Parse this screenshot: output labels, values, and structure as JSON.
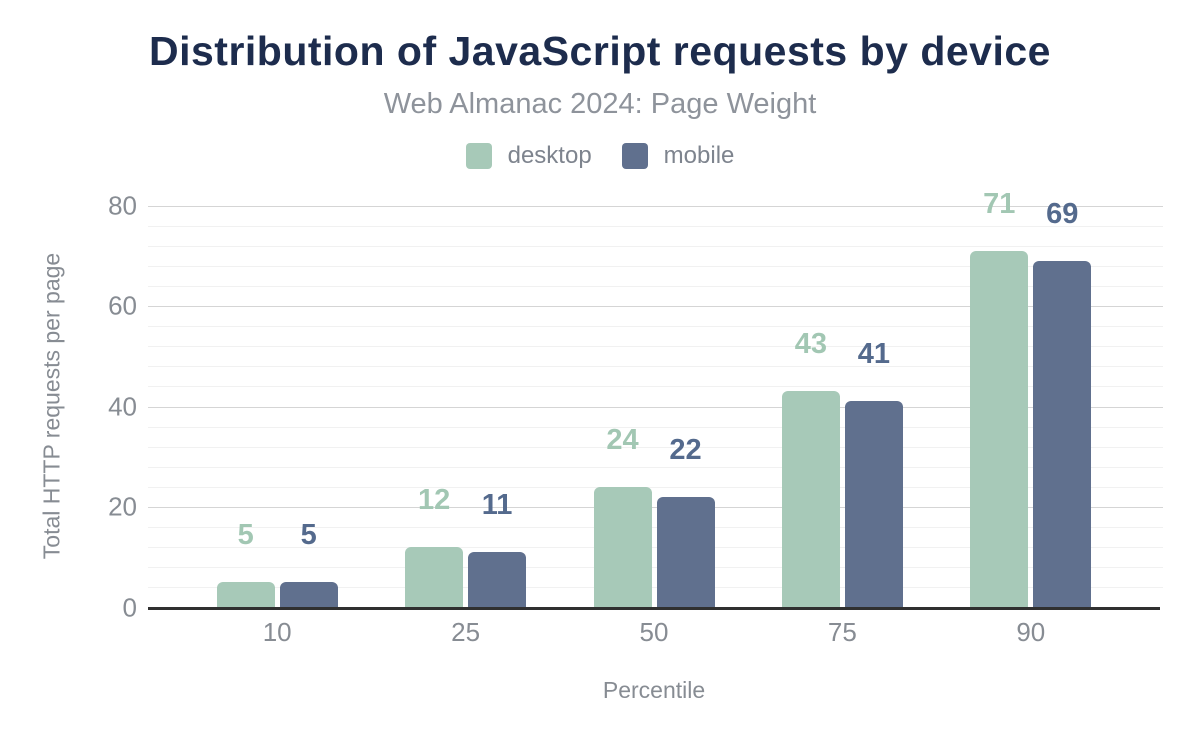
{
  "title": "Distribution of JavaScript requests by device",
  "subtitle": "Web Almanac 2024: Page Weight",
  "colors": {
    "title": "#1d2c4d",
    "muted_text": "#878c93",
    "subtitle_text": "#8e939b",
    "legend_text": "#7e848e",
    "axis_line": "#303030",
    "major_gridline": "#d5d5d5",
    "minor_gridline": "#f1f1f1",
    "desktop": "#a7c9b8",
    "mobile": "#60708e",
    "desktop_label": "#a2c7b3",
    "mobile_label": "#546a8d"
  },
  "legend": [
    {
      "name": "desktop",
      "label": "desktop",
      "color": "#a7c9b8"
    },
    {
      "name": "mobile",
      "label": "mobile",
      "color": "#60708e"
    }
  ],
  "chart_data": {
    "type": "bar",
    "title": "Distribution of JavaScript requests by device",
    "subtitle": "Web Almanac 2024: Page Weight",
    "categories": [
      "10",
      "25",
      "50",
      "75",
      "90"
    ],
    "series": [
      {
        "name": "desktop",
        "color": "#a7c9b8",
        "label_color": "#a2c7b3",
        "values": [
          5,
          12,
          24,
          43,
          71
        ],
        "data_labels": [
          "5",
          "12",
          "24",
          "43",
          "71"
        ]
      },
      {
        "name": "mobile",
        "color": "#60708e",
        "label_color": "#546a8d",
        "values": [
          5,
          11,
          22,
          41,
          69
        ],
        "data_labels": [
          "5",
          "11",
          "22",
          "41",
          "69"
        ]
      }
    ],
    "xlabel": "Percentile",
    "ylabel": "Total HTTP requests per page",
    "ylim": [
      0,
      80
    ],
    "yticks": [
      0,
      20,
      40,
      60,
      80
    ],
    "minor_grid_step": 4,
    "grid": "on",
    "legend_position": "top",
    "data_labels_visible": true
  }
}
